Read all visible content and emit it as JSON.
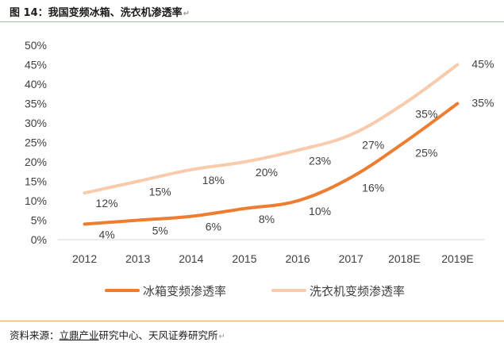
{
  "figure": {
    "title": "图 14：我国变频冰箱、洗衣机渗透率",
    "source_prefix": "资料来源：",
    "source_link": "立鼎产业",
    "source_rest": "研究中心、天风证券研究所"
  },
  "chart_data": {
    "type": "line",
    "title": "",
    "xlabel": "",
    "ylabel": "",
    "categories": [
      "2012",
      "2013",
      "2014",
      "2015",
      "2016",
      "2017",
      "2018E",
      "2019E"
    ],
    "ylim": [
      0,
      50
    ],
    "yticks": [
      0,
      5,
      10,
      15,
      20,
      25,
      30,
      35,
      40,
      45,
      50
    ],
    "ytick_labels": [
      "0%",
      "5%",
      "10%",
      "15%",
      "20%",
      "25%",
      "30%",
      "35%",
      "40%",
      "45%",
      "50%"
    ],
    "grid": false,
    "legend_position": "bottom",
    "series": [
      {
        "name": "冰箱变频渗透率",
        "color": "#ED7D31",
        "values": [
          4,
          5,
          6,
          8,
          10,
          16,
          25,
          35
        ],
        "labels": [
          "4%",
          "5%",
          "6%",
          "8%",
          "10%",
          "16%",
          "25%",
          "35%"
        ]
      },
      {
        "name": "洗衣机变频渗透率",
        "color": "#F8CBAD",
        "values": [
          12,
          15,
          18,
          20,
          23,
          27,
          35,
          45
        ],
        "labels": [
          "12%",
          "15%",
          "18%",
          "20%",
          "23%",
          "27%",
          "35%",
          "45%"
        ]
      }
    ]
  }
}
